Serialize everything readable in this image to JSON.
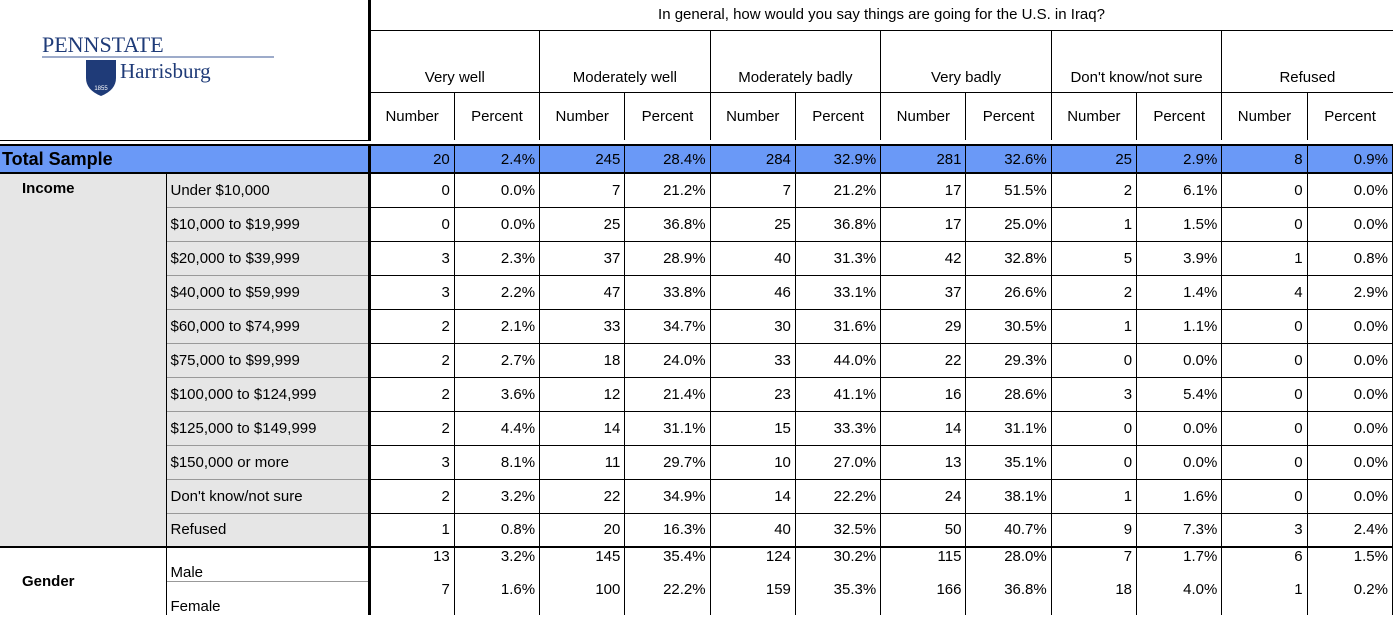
{
  "logo": {
    "name": "PENNSTATE",
    "campus": "Harrisburg",
    "year": "1855"
  },
  "table": {
    "question": "In general, how would you say things are going for the U.S. in Iraq?",
    "groups": [
      {
        "name": "Very well",
        "columns": [
          "Number",
          "Percent"
        ]
      },
      {
        "name": "Moderately well",
        "columns": [
          "Number",
          "Percent"
        ]
      },
      {
        "name": "Moderately badly",
        "columns": [
          "Number",
          "Percent"
        ]
      },
      {
        "name": "Very badly",
        "columns": [
          "Number",
          "Percent"
        ]
      },
      {
        "name": "Don't know/not sure",
        "columns": [
          "Number",
          "Percent"
        ]
      },
      {
        "name": "Refused",
        "columns": [
          "Number",
          "Percent"
        ]
      }
    ],
    "total": {
      "label": "Total Sample",
      "cells": [
        "20",
        "2.4%",
        "245",
        "28.4%",
        "284",
        "32.9%",
        "281",
        "32.6%",
        "25",
        "2.9%",
        "8",
        "0.9%"
      ]
    },
    "sections": [
      {
        "label": "Income",
        "rows": [
          {
            "label": "Under $10,000",
            "cells": [
              "0",
              "0.0%",
              "7",
              "21.2%",
              "7",
              "21.2%",
              "17",
              "51.5%",
              "2",
              "6.1%",
              "0",
              "0.0%"
            ]
          },
          {
            "label": "$10,000 to $19,999",
            "cells": [
              "0",
              "0.0%",
              "25",
              "36.8%",
              "25",
              "36.8%",
              "17",
              "25.0%",
              "1",
              "1.5%",
              "0",
              "0.0%"
            ]
          },
          {
            "label": "$20,000 to $39,999",
            "cells": [
              "3",
              "2.3%",
              "37",
              "28.9%",
              "40",
              "31.3%",
              "42",
              "32.8%",
              "5",
              "3.9%",
              "1",
              "0.8%"
            ]
          },
          {
            "label": "$40,000 to $59,999",
            "cells": [
              "3",
              "2.2%",
              "47",
              "33.8%",
              "46",
              "33.1%",
              "37",
              "26.6%",
              "2",
              "1.4%",
              "4",
              "2.9%"
            ]
          },
          {
            "label": "$60,000 to $74,999",
            "cells": [
              "2",
              "2.1%",
              "33",
              "34.7%",
              "30",
              "31.6%",
              "29",
              "30.5%",
              "1",
              "1.1%",
              "0",
              "0.0%"
            ]
          },
          {
            "label": "$75,000 to $99,999",
            "cells": [
              "2",
              "2.7%",
              "18",
              "24.0%",
              "33",
              "44.0%",
              "22",
              "29.3%",
              "0",
              "0.0%",
              "0",
              "0.0%"
            ]
          },
          {
            "label": "$100,000 to $124,999",
            "cells": [
              "2",
              "3.6%",
              "12",
              "21.4%",
              "23",
              "41.1%",
              "16",
              "28.6%",
              "3",
              "5.4%",
              "0",
              "0.0%"
            ]
          },
          {
            "label": "$125,000 to $149,999",
            "cells": [
              "2",
              "4.4%",
              "14",
              "31.1%",
              "15",
              "33.3%",
              "14",
              "31.1%",
              "0",
              "0.0%",
              "0",
              "0.0%"
            ]
          },
          {
            "label": "$150,000 or more",
            "cells": [
              "3",
              "8.1%",
              "11",
              "29.7%",
              "10",
              "27.0%",
              "13",
              "35.1%",
              "0",
              "0.0%",
              "0",
              "0.0%"
            ]
          },
          {
            "label": "Don't know/not sure",
            "cells": [
              "2",
              "3.2%",
              "22",
              "34.9%",
              "14",
              "22.2%",
              "24",
              "38.1%",
              "1",
              "1.6%",
              "0",
              "0.0%"
            ]
          },
          {
            "label": "Refused",
            "cells": [
              "1",
              "0.8%",
              "20",
              "16.3%",
              "40",
              "32.5%",
              "50",
              "40.7%",
              "9",
              "7.3%",
              "3",
              "2.4%"
            ]
          }
        ]
      },
      {
        "label": "Gender",
        "rows": [
          {
            "label": "Male",
            "cells": [
              "13",
              "3.2%",
              "145",
              "35.4%",
              "124",
              "30.2%",
              "115",
              "28.0%",
              "7",
              "1.7%",
              "6",
              "1.5%"
            ]
          },
          {
            "label": "Female",
            "cells": [
              "7",
              "1.6%",
              "100",
              "22.2%",
              "159",
              "35.3%",
              "166",
              "36.8%",
              "18",
              "4.0%",
              "1",
              "0.2%"
            ]
          }
        ]
      }
    ]
  }
}
